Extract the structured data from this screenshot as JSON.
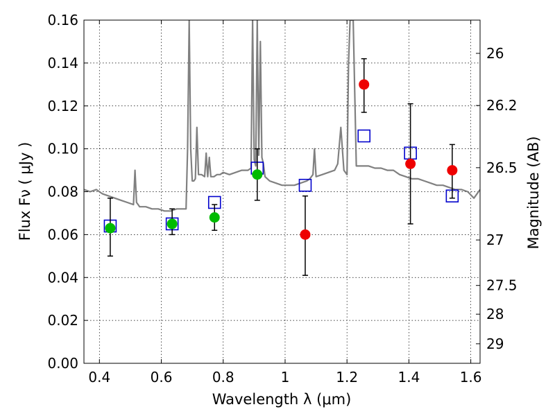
{
  "chart_data": {
    "type": "scatter",
    "xlabel": "Wavelength  λ (μm)",
    "ylabel": "Flux  Fν  ( μJy )",
    "y2label": "Magnitude (AB)",
    "xlim": [
      0.35,
      1.63
    ],
    "ylim": [
      0.0,
      0.16
    ],
    "grid": true,
    "x_ticks": [
      0.4,
      0.6,
      0.8,
      1.0,
      1.2,
      1.4,
      1.6
    ],
    "x_tick_labels": [
      "0.4",
      "0.6",
      "0.8",
      "1",
      "1.2",
      "1.4",
      "1.6"
    ],
    "y_ticks": [
      0.0,
      0.02,
      0.04,
      0.06,
      0.08,
      0.1,
      0.12,
      0.14,
      0.16
    ],
    "y_tick_labels": [
      "0.00",
      "0.02",
      "0.04",
      "0.06",
      "0.08",
      "0.10",
      "0.12",
      "0.14",
      "0.16"
    ],
    "mag_ticks": [
      {
        "label": "26",
        "flux": 0.1445
      },
      {
        "label": "26.2",
        "flux": 0.1202
      },
      {
        "label": "26.5",
        "flux": 0.0912
      },
      {
        "label": "27",
        "flux": 0.0575
      },
      {
        "label": "27.5",
        "flux": 0.0363
      },
      {
        "label": "28",
        "flux": 0.0229
      },
      {
        "label": "29",
        "flux": 0.0091
      }
    ],
    "spectrum": {
      "color": "#808080",
      "x": [
        0.35,
        0.37,
        0.39,
        0.41,
        0.43,
        0.45,
        0.47,
        0.49,
        0.51,
        0.515,
        0.52,
        0.525,
        0.53,
        0.55,
        0.57,
        0.59,
        0.61,
        0.63,
        0.65,
        0.67,
        0.68,
        0.685,
        0.69,
        0.695,
        0.7,
        0.705,
        0.71,
        0.715,
        0.72,
        0.73,
        0.74,
        0.745,
        0.75,
        0.755,
        0.76,
        0.77,
        0.78,
        0.79,
        0.8,
        0.82,
        0.84,
        0.86,
        0.88,
        0.89,
        0.895,
        0.9,
        0.905,
        0.91,
        0.915,
        0.92,
        0.925,
        0.93,
        0.935,
        0.95,
        0.97,
        0.99,
        1.01,
        1.03,
        1.05,
        1.07,
        1.08,
        1.09,
        1.095,
        1.1,
        1.12,
        1.14,
        1.16,
        1.17,
        1.18,
        1.19,
        1.2,
        1.205,
        1.21,
        1.215,
        1.22,
        1.23,
        1.25,
        1.27,
        1.29,
        1.31,
        1.33,
        1.35,
        1.37,
        1.39,
        1.41,
        1.43,
        1.45,
        1.47,
        1.49,
        1.51,
        1.53,
        1.55,
        1.57,
        1.59,
        1.61,
        1.63
      ],
      "y": [
        0.081,
        0.08,
        0.081,
        0.079,
        0.078,
        0.077,
        0.076,
        0.075,
        0.074,
        0.09,
        0.075,
        0.074,
        0.073,
        0.073,
        0.072,
        0.072,
        0.071,
        0.071,
        0.072,
        0.072,
        0.072,
        0.1,
        0.16,
        0.1,
        0.085,
        0.085,
        0.086,
        0.11,
        0.088,
        0.088,
        0.087,
        0.098,
        0.087,
        0.096,
        0.087,
        0.087,
        0.088,
        0.088,
        0.089,
        0.088,
        0.089,
        0.09,
        0.09,
        0.091,
        0.16,
        0.095,
        0.092,
        0.16,
        0.097,
        0.15,
        0.096,
        0.093,
        0.087,
        0.085,
        0.084,
        0.083,
        0.083,
        0.083,
        0.084,
        0.085,
        0.086,
        0.088,
        0.1,
        0.087,
        0.088,
        0.089,
        0.09,
        0.093,
        0.11,
        0.09,
        0.088,
        0.14,
        0.16,
        0.16,
        0.16,
        0.092,
        0.092,
        0.092,
        0.091,
        0.091,
        0.09,
        0.09,
        0.088,
        0.087,
        0.086,
        0.086,
        0.085,
        0.084,
        0.083,
        0.083,
        0.082,
        0.081,
        0.081,
        0.08,
        0.077,
        0.081
      ]
    },
    "series": [
      {
        "marker": "square",
        "color": "#0000cc",
        "x": [
          0.435,
          0.635,
          0.772,
          0.91,
          1.065,
          1.255,
          1.405,
          1.54
        ],
        "y": [
          0.064,
          0.065,
          0.075,
          0.091,
          0.083,
          0.106,
          0.098,
          0.078
        ]
      },
      {
        "marker": "circle",
        "color": "#00bb00",
        "x": [
          0.435,
          0.635,
          0.772,
          0.91
        ],
        "y": [
          0.063,
          0.065,
          0.068,
          0.088
        ],
        "yerr_low": [
          0.05,
          0.06,
          0.062,
          0.076
        ],
        "yerr_high": [
          0.077,
          0.072,
          0.074,
          0.1
        ]
      },
      {
        "marker": "circle",
        "color": "#ee0000",
        "x": [
          1.065,
          1.255,
          1.405,
          1.54
        ],
        "y": [
          0.06,
          0.13,
          0.093,
          0.09
        ],
        "yerr_low": [
          0.041,
          0.117,
          0.065,
          0.077
        ],
        "yerr_high": [
          0.078,
          0.142,
          0.121,
          0.102
        ]
      }
    ]
  }
}
